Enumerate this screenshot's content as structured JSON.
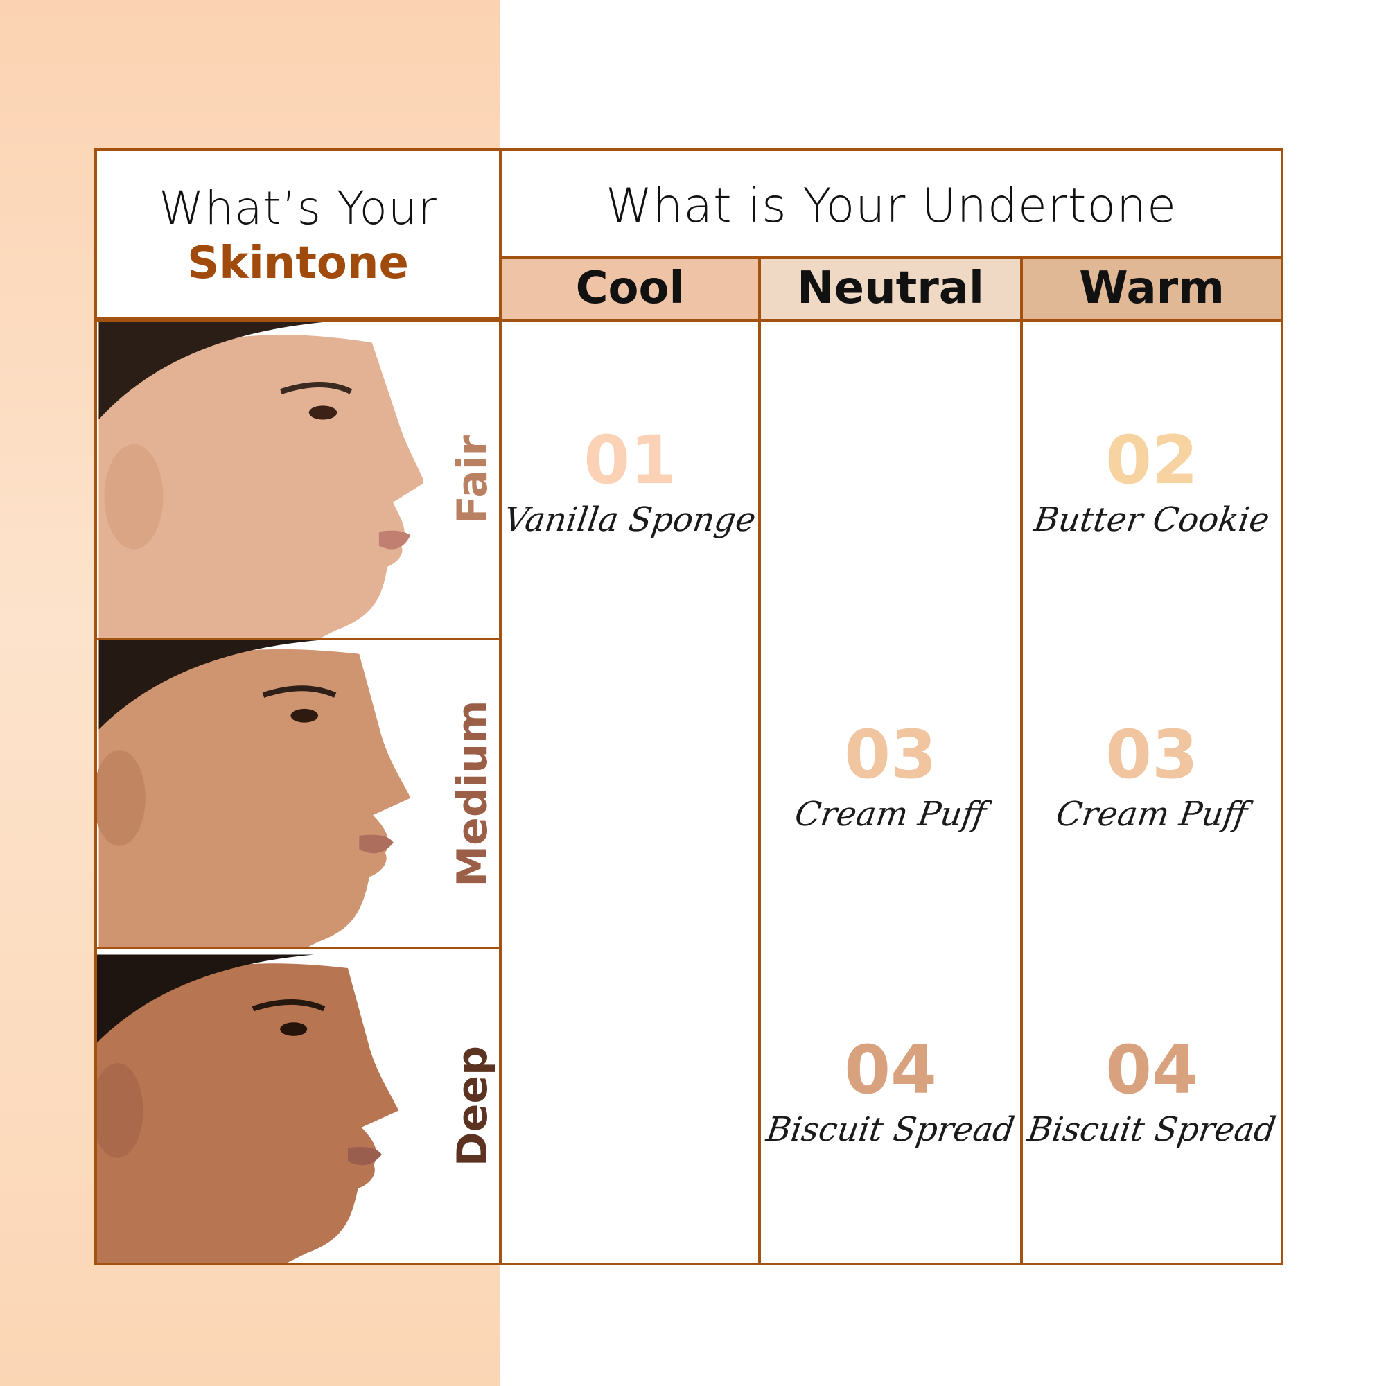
{
  "header": {
    "skintone_line1": "What’s Your",
    "skintone_line2": "Skintone",
    "undertone_title": "What is Your Undertone"
  },
  "undertones": [
    {
      "label": "Cool",
      "color": "#efc4a6"
    },
    {
      "label": "Neutral",
      "color": "#efd9c4"
    },
    {
      "label": "Warm",
      "color": "#e1b895"
    }
  ],
  "skintones": [
    {
      "label": "Fair",
      "color": "#b98162",
      "skin": "#e3b294"
    },
    {
      "label": "Medium",
      "color": "#9b5e46",
      "skin": "#cf9470"
    },
    {
      "label": "Deep",
      "color": "#5c3320",
      "skin": "#b87552"
    }
  ],
  "shades": {
    "cool_fair": {
      "num": "01",
      "name": "Vanilla Sponge",
      "color": "#fcd2b6"
    },
    "warm_fair": {
      "num": "02",
      "name": "Butter Cookie",
      "color": "#f8d3a2"
    },
    "neutral_medium": {
      "num": "03",
      "name": "Cream Puff",
      "color": "#f0c5a0"
    },
    "warm_medium": {
      "num": "03",
      "name": "Cream Puff",
      "color": "#f0c5a0"
    },
    "neutral_deep": {
      "num": "04",
      "name": "Biscuit Spread",
      "color": "#d9a27e"
    },
    "warm_deep": {
      "num": "04",
      "name": "Biscuit Spread",
      "color": "#d9a27e"
    }
  },
  "colors": {
    "border": "#a3520f",
    "accent": "#a04a0c"
  }
}
